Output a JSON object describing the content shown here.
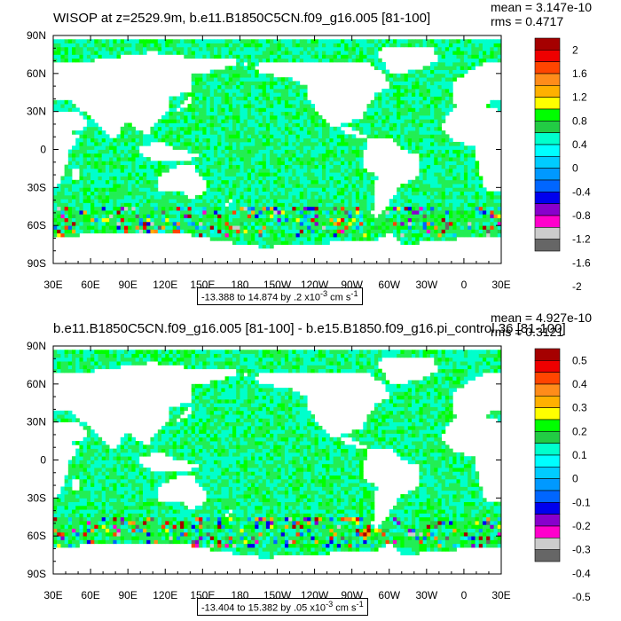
{
  "chart_data": [
    {
      "type": "heatmap",
      "title": "WISOP at z=2529.9m, b.e11.B1850C5CN.f09_g16.005 [81-100]",
      "stats": {
        "mean": "mean = 3.147e-10",
        "rms": "rms = 0.4717"
      },
      "x_ticks": [
        "30E",
        "60E",
        "90E",
        "120E",
        "150E",
        "180",
        "150W",
        "120W",
        "90W",
        "60W",
        "30W",
        "0",
        "30E"
      ],
      "y_ticks": [
        "90N",
        "60N",
        "30N",
        "0",
        "30S",
        "60S",
        "90S"
      ],
      "xlim": [
        30,
        390
      ],
      "ylim": [
        -90,
        90
      ],
      "range_label": "-13.388 to 14.874 by .2 x10",
      "range_exp": "-3",
      "range_units": "cm s",
      "range_units_exp": "-1",
      "colorbar": {
        "labels": [
          "2",
          "1.6",
          "1.2",
          "0.8",
          "0.4",
          "0",
          "-0.4",
          "-0.8",
          "-1.2",
          "-1.6",
          "-2"
        ],
        "colors": [
          "#a50000",
          "#ee0000",
          "#ff4500",
          "#ff8c1a",
          "#ffb000",
          "#ffff00",
          "#00ff00",
          "#22cc44",
          "#00ffcc",
          "#00ffff",
          "#00ccff",
          "#0099ff",
          "#0066ff",
          "#0000ee",
          "#8800cc",
          "#ff00cc",
          "#cccccc",
          "#666666"
        ]
      }
    },
    {
      "type": "heatmap",
      "title": "b.e11.B1850C5CN.f09_g16.005 [81-100] - b.e15.B1850.f09_g16.pi_control.36 [81-100]",
      "stats": {
        "mean": "mean = 4.927e-10",
        "rms": "rms = 0.3121"
      },
      "x_ticks": [
        "30E",
        "60E",
        "90E",
        "120E",
        "150E",
        "180",
        "150W",
        "120W",
        "90W",
        "60W",
        "30W",
        "0",
        "30E"
      ],
      "y_ticks": [
        "90N",
        "60N",
        "30N",
        "0",
        "30S",
        "60S",
        "90S"
      ],
      "xlim": [
        30,
        390
      ],
      "ylim": [
        -90,
        90
      ],
      "range_label": "-13.404 to 15.382 by .05 x10",
      "range_exp": "-3",
      "range_units": "cm s",
      "range_units_exp": "-1",
      "colorbar": {
        "labels": [
          "0.5",
          "0.4",
          "0.3",
          "0.2",
          "0.1",
          "0",
          "-0.1",
          "-0.2",
          "-0.3",
          "-0.4",
          "-0.5"
        ],
        "colors": [
          "#a50000",
          "#ee0000",
          "#ff4500",
          "#ff8c1a",
          "#ffb000",
          "#ffff00",
          "#00ff00",
          "#22cc44",
          "#00ffcc",
          "#00ffff",
          "#00ccff",
          "#0099ff",
          "#0066ff",
          "#0000ee",
          "#8800cc",
          "#ff00cc",
          "#cccccc",
          "#666666"
        ]
      }
    }
  ]
}
